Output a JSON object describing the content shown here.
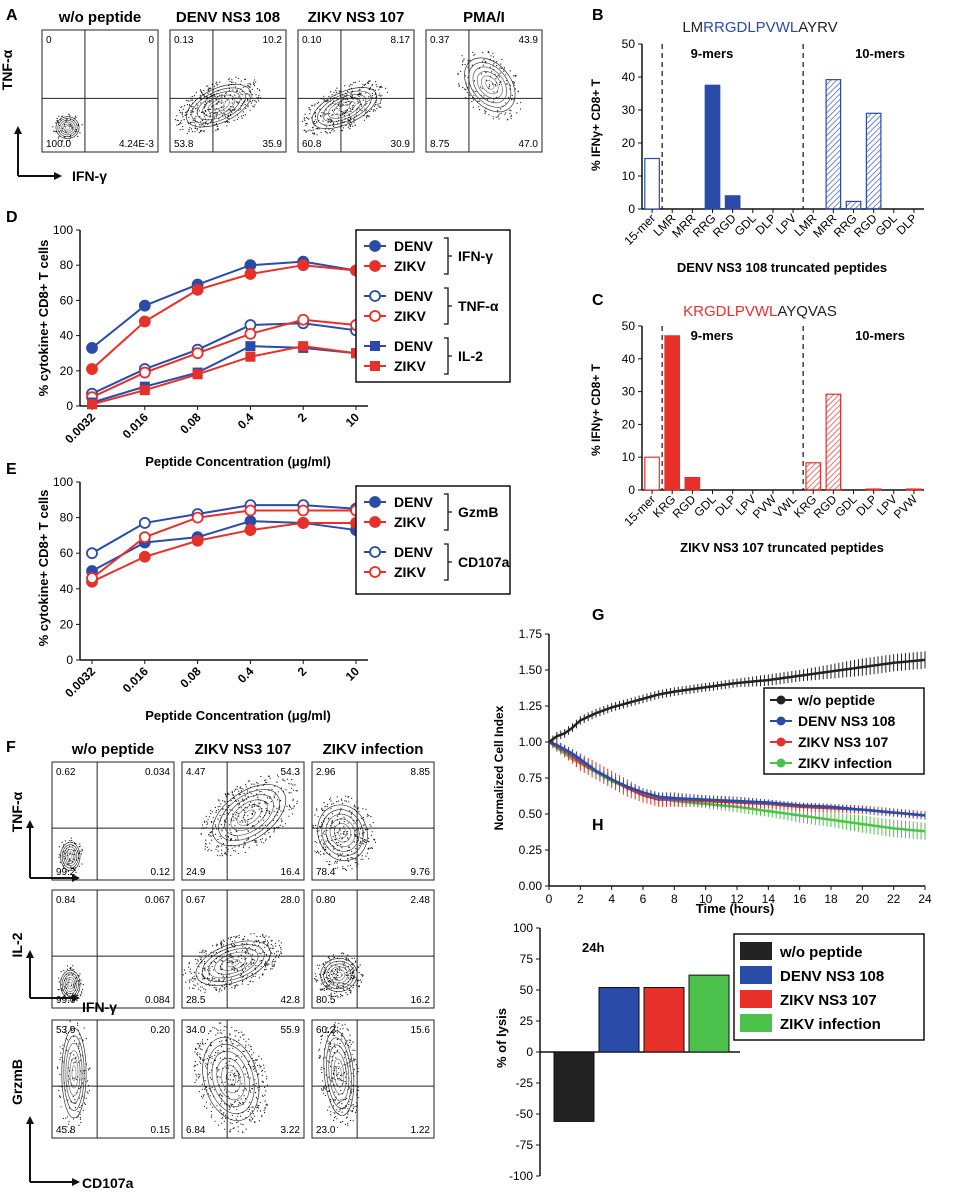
{
  "colors": {
    "denv": "#2b4ba8",
    "zikv": "#e8302a",
    "black": "#222222",
    "green": "#4cc24c",
    "blue_seq": "#2b4ba8",
    "red_seq": "#e8302a"
  },
  "panel_letters": {
    "A": "A",
    "B": "B",
    "C": "C",
    "D": "D",
    "E": "E",
    "F": "F",
    "G": "G",
    "H": "H"
  },
  "panelA": {
    "yaxis": "TNF-α",
    "xaxis": "IFN-γ",
    "plots": [
      {
        "title": "w/o peptide",
        "ul": "0",
        "ur": "0",
        "ll": "100.0",
        "lr": "4.24E-3"
      },
      {
        "title": "DENV NS3 108",
        "ul": "0.13",
        "ur": "10.2",
        "ll": "53.8",
        "lr": "35.9"
      },
      {
        "title": "ZIKV NS3 107",
        "ul": "0.10",
        "ur": "8.17",
        "ll": "60.8",
        "lr": "30.9"
      },
      {
        "title": "PMA/I",
        "ul": "0.37",
        "ur": "43.9",
        "ll": "8.75",
        "lr": "47.0"
      }
    ]
  },
  "panelF": {
    "titles": [
      "w/o peptide",
      "ZIKV NS3 107",
      "ZIKV infection"
    ],
    "row_labels": [
      "TNF-α",
      "IL-2",
      "GrzmB"
    ],
    "x_labels": [
      "IFN-γ",
      "CD107a"
    ],
    "rows": [
      [
        {
          "ul": "0.62",
          "ur": "0.034",
          "ll": "99.2",
          "lr": "0.12"
        },
        {
          "ul": "4.47",
          "ur": "54.3",
          "ll": "24.9",
          "lr": "16.4"
        },
        {
          "ul": "2.96",
          "ur": "8.85",
          "ll": "78.4",
          "lr": "9.76"
        }
      ],
      [
        {
          "ul": "0.84",
          "ur": "0.067",
          "ll": "99.0",
          "lr": "0.084"
        },
        {
          "ul": "0.67",
          "ur": "28.0",
          "ll": "28.5",
          "lr": "42.8"
        },
        {
          "ul": "0.80",
          "ur": "2.48",
          "ll": "80.5",
          "lr": "16.2"
        }
      ],
      [
        {
          "ul": "53.9",
          "ur": "0.20",
          "ll": "45.8",
          "lr": "0.15"
        },
        {
          "ul": "34.0",
          "ur": "55.9",
          "ll": "6.84",
          "lr": "3.22"
        },
        {
          "ul": "60.2",
          "ur": "15.6",
          "ll": "23.0",
          "lr": "1.22"
        }
      ]
    ]
  },
  "chart_data": [
    {
      "id": "B",
      "type": "bar",
      "sequence": {
        "pre": "LM",
        "mid": "RRGDLPVWL",
        "post": "AYRV"
      },
      "ylabel": "% IFNγ+ CD8+ T",
      "xlabel": "DENV NS3 108 truncated peptides",
      "ylim": [
        0,
        50
      ],
      "yticks": [
        0,
        10,
        20,
        30,
        40,
        50
      ],
      "groups": [
        "9-mers",
        "10-mers"
      ],
      "categories": [
        "15-mer",
        "LMR",
        "MRR",
        "RRG",
        "RGD",
        "GDL",
        "DLP",
        "LPV",
        "LMR",
        "MRR",
        "RRG",
        "RGD",
        "GDL",
        "DLP"
      ],
      "values": [
        15.3,
        0,
        0,
        37.5,
        4,
        0,
        0,
        0,
        0,
        39.2,
        2.3,
        29,
        0,
        0
      ],
      "styles": [
        "open",
        "solid",
        "solid",
        "solid",
        "solid",
        "solid",
        "solid",
        "solid",
        "hatch",
        "hatch",
        "hatch",
        "hatch",
        "hatch",
        "hatch"
      ]
    },
    {
      "id": "C",
      "type": "bar",
      "sequence": {
        "pre": "",
        "mid": "KRGDLPVWL",
        "post": "AYQVAS"
      },
      "ylabel": "% IFNγ+ CD8+ T",
      "xlabel": "ZIKV NS3 107 truncated peptides",
      "ylim": [
        0,
        50
      ],
      "yticks": [
        0,
        10,
        20,
        30,
        40,
        50
      ],
      "groups": [
        "9-mers",
        "10-mers"
      ],
      "categories": [
        "15-mer",
        "KRG",
        "RGD",
        "GDL",
        "DLP",
        "LPV",
        "PVW",
        "VWL",
        "KRG",
        "RGD",
        "GDL",
        "DLP",
        "LPV",
        "PVW"
      ],
      "values": [
        10,
        47,
        3.8,
        0,
        0,
        0,
        0,
        0,
        8.3,
        29.2,
        0,
        0.3,
        0,
        0.3
      ],
      "styles": [
        "open",
        "solid",
        "solid",
        "solid",
        "solid",
        "solid",
        "solid",
        "solid",
        "hatch",
        "hatch",
        "hatch",
        "hatch",
        "hatch",
        "hatch"
      ]
    },
    {
      "id": "D",
      "type": "line",
      "ylabel": "% cytokine+ CD8+ T cells",
      "xlabel": "Peptide Concentration (μg/ml)",
      "categories": [
        "0.0032",
        "0.016",
        "0.08",
        "0.4",
        "2",
        "10"
      ],
      "ylim": [
        0,
        100
      ],
      "yticks": [
        0,
        20,
        40,
        60,
        80,
        100
      ],
      "series": [
        {
          "name": "DENV",
          "group": "IFN-γ",
          "marker": "circle-filled",
          "color": "denv",
          "values": [
            33,
            57,
            69,
            80,
            82,
            77
          ]
        },
        {
          "name": "ZIKV",
          "group": "IFN-γ",
          "marker": "circle-filled",
          "color": "zikv",
          "values": [
            21,
            48,
            66,
            75,
            80,
            77
          ]
        },
        {
          "name": "DENV",
          "group": "TNF-α",
          "marker": "circle-open",
          "color": "denv",
          "values": [
            7,
            21,
            32,
            46,
            47,
            43
          ]
        },
        {
          "name": "ZIKV",
          "group": "TNF-α",
          "marker": "circle-open",
          "color": "zikv",
          "values": [
            5,
            19,
            30,
            41,
            49,
            46
          ]
        },
        {
          "name": "DENV",
          "group": "IL-2",
          "marker": "square-filled",
          "color": "denv",
          "values": [
            2,
            11,
            19,
            34,
            33,
            30
          ]
        },
        {
          "name": "ZIKV",
          "group": "IL-2",
          "marker": "square-filled",
          "color": "zikv",
          "values": [
            1,
            9,
            18,
            28,
            34,
            30
          ]
        }
      ],
      "legend_groups": [
        "IFN-γ",
        "TNF-α",
        "IL-2"
      ]
    },
    {
      "id": "E",
      "type": "line",
      "ylabel": "% cytokine+ CD8+ T cells",
      "xlabel": "Peptide Concentration (μg/ml)",
      "categories": [
        "0.0032",
        "0.016",
        "0.08",
        "0.4",
        "2",
        "10"
      ],
      "ylim": [
        0,
        100
      ],
      "yticks": [
        0,
        20,
        40,
        60,
        80,
        100
      ],
      "series": [
        {
          "name": "DENV",
          "group": "GzmB",
          "marker": "circle-filled",
          "color": "denv",
          "values": [
            50,
            66,
            69,
            78,
            77,
            73
          ]
        },
        {
          "name": "ZIKV",
          "group": "GzmB",
          "marker": "circle-filled",
          "color": "zikv",
          "values": [
            44,
            58,
            67,
            73,
            77,
            77
          ]
        },
        {
          "name": "DENV",
          "group": "CD107a",
          "marker": "circle-open",
          "color": "denv",
          "values": [
            60,
            77,
            82,
            87,
            87,
            85
          ]
        },
        {
          "name": "ZIKV",
          "group": "CD107a",
          "marker": "circle-open",
          "color": "zikv",
          "values": [
            46,
            69,
            80,
            84,
            84,
            84
          ]
        }
      ],
      "legend_groups": [
        "GzmB",
        "CD107a"
      ]
    },
    {
      "id": "G",
      "type": "line",
      "ylabel": "Normalized Cell Index",
      "xlabel": "Time (hours)",
      "xlim": [
        0,
        24
      ],
      "xticks": [
        0,
        2,
        4,
        6,
        8,
        10,
        12,
        14,
        16,
        18,
        20,
        22,
        24
      ],
      "ylim": [
        0,
        1.75
      ],
      "yticks": [
        "0.00",
        "0.25",
        "0.50",
        "0.75",
        "1.00",
        "1.25",
        "1.50",
        "1.75"
      ],
      "series": [
        {
          "name": "w/o peptide",
          "color": "black",
          "x": [
            0,
            0.5,
            1,
            1.5,
            2,
            3,
            4,
            5,
            6,
            7,
            8,
            10,
            12,
            14,
            16,
            18,
            20,
            22,
            24
          ],
          "y": [
            1.0,
            1.04,
            1.06,
            1.1,
            1.15,
            1.2,
            1.24,
            1.27,
            1.3,
            1.33,
            1.35,
            1.38,
            1.41,
            1.43,
            1.46,
            1.49,
            1.52,
            1.55,
            1.57
          ],
          "err": [
            0.02,
            0.03,
            0.03,
            0.03,
            0.03,
            0.03,
            0.03,
            0.03,
            0.03,
            0.03,
            0.03,
            0.03,
            0.03,
            0.04,
            0.04,
            0.05,
            0.06,
            0.06,
            0.06
          ]
        },
        {
          "name": "DENV NS3 108",
          "color": "denv",
          "x": [
            0,
            0.5,
            1,
            1.5,
            2,
            3,
            4,
            5,
            6,
            7,
            8,
            10,
            12,
            14,
            16,
            18,
            20,
            22,
            24
          ],
          "y": [
            1.0,
            0.98,
            0.95,
            0.92,
            0.88,
            0.8,
            0.74,
            0.69,
            0.65,
            0.62,
            0.61,
            0.6,
            0.59,
            0.58,
            0.56,
            0.55,
            0.53,
            0.51,
            0.49
          ],
          "err": [
            0.02,
            0.03,
            0.03,
            0.03,
            0.03,
            0.03,
            0.03,
            0.03,
            0.03,
            0.03,
            0.03,
            0.03,
            0.03,
            0.02,
            0.02,
            0.02,
            0.02,
            0.02,
            0.02
          ]
        },
        {
          "name": "ZIKV NS3 107",
          "color": "zikv",
          "x": [
            0,
            0.5,
            1,
            1.5,
            2,
            3,
            4,
            5,
            6,
            7,
            8,
            10,
            12,
            14,
            16,
            18,
            20,
            22,
            24
          ],
          "y": [
            1.0,
            0.97,
            0.94,
            0.9,
            0.86,
            0.8,
            0.74,
            0.68,
            0.63,
            0.6,
            0.6,
            0.59,
            0.58,
            0.57,
            0.55,
            0.54,
            0.53,
            0.51,
            0.49
          ],
          "err": [
            0.02,
            0.03,
            0.04,
            0.05,
            0.06,
            0.06,
            0.06,
            0.06,
            0.05,
            0.05,
            0.05,
            0.04,
            0.04,
            0.03,
            0.03,
            0.03,
            0.03,
            0.03,
            0.03
          ]
        },
        {
          "name": "ZIKV infection",
          "color": "green",
          "x": [
            0,
            0.5,
            1,
            1.5,
            2,
            3,
            4,
            5,
            6,
            7,
            8,
            10,
            12,
            14,
            16,
            18,
            20,
            22,
            24
          ],
          "y": [
            1.0,
            0.96,
            0.92,
            0.88,
            0.85,
            0.79,
            0.73,
            0.68,
            0.64,
            0.61,
            0.59,
            0.57,
            0.55,
            0.52,
            0.49,
            0.46,
            0.43,
            0.4,
            0.38
          ],
          "err": [
            0.02,
            0.03,
            0.03,
            0.03,
            0.03,
            0.03,
            0.03,
            0.03,
            0.03,
            0.03,
            0.03,
            0.03,
            0.04,
            0.04,
            0.05,
            0.05,
            0.06,
            0.06,
            0.06
          ]
        }
      ]
    },
    {
      "id": "H",
      "type": "bar",
      "ylabel": "% of lysis",
      "annotation": "24h",
      "ylim": [
        -100,
        100
      ],
      "yticks": [
        100,
        75,
        50,
        25,
        0,
        -25,
        -50,
        -75,
        -100
      ],
      "categories": [
        "w/o peptide",
        "DENV NS3 108",
        "ZIKV NS3 107",
        "ZIKV infection"
      ],
      "values": [
        -56,
        52,
        52,
        62
      ],
      "colors": [
        "black",
        "denv",
        "zikv",
        "green"
      ]
    }
  ]
}
